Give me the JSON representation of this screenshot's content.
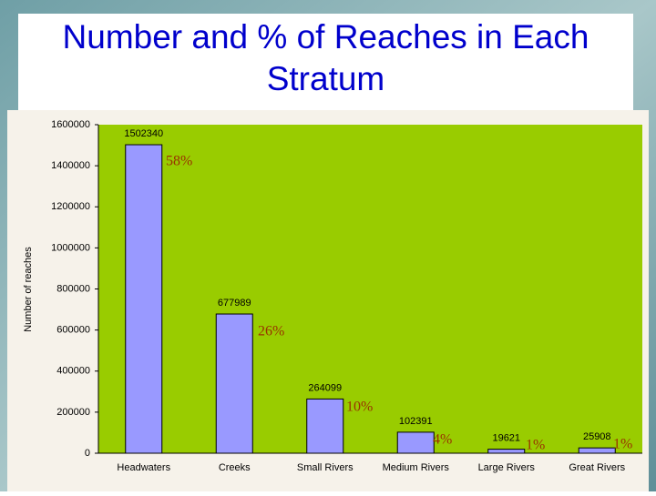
{
  "chart_data": {
    "type": "bar",
    "title": "Number and % of Reaches in Each Stratum",
    "y_label": "Number of reaches",
    "categories": [
      "Headwaters",
      "Creeks",
      "Small Rivers",
      "Medium Rivers",
      "Large Rivers",
      "Great Rivers"
    ],
    "values": [
      1502340,
      677989,
      264099,
      102391,
      19621,
      25908
    ],
    "color": "#9999ff",
    "shares": {
      "values": [
        58,
        26,
        10,
        4,
        1,
        1
      ],
      "value_labels": [
        "58%",
        "26%",
        "10%",
        "4%",
        "1%",
        "1%"
      ],
      "color": "#993300"
    },
    "ylim": [
      0,
      1600000
    ],
    "yticks": [
      0,
      200000,
      400000,
      600000,
      800000,
      1000000,
      1200000,
      1400000,
      1600000
    ],
    "plot_color": "#99cc00"
  }
}
